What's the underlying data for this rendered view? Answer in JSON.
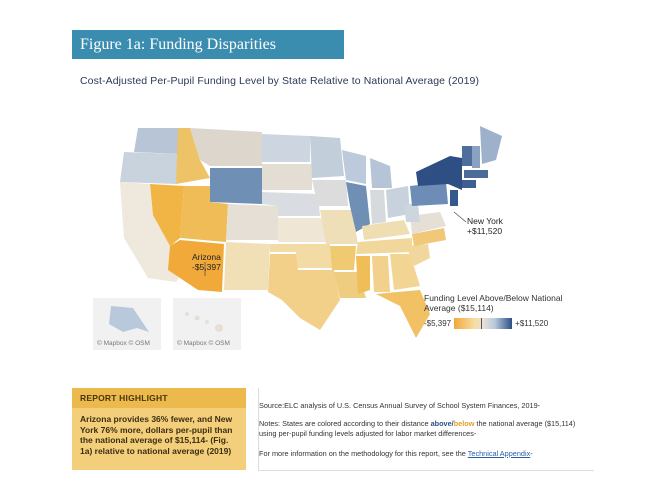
{
  "figure_title": "Figure 1a: Funding Disparities",
  "subtitle": "Cost-Adjusted Per-Pupil Funding Level by State Relative to National Average (2019)",
  "map": {
    "insets": [
      {
        "name": "Alaska",
        "credit": "© Mapbox © OSM"
      },
      {
        "name": "Hawaii",
        "credit": "© Mapbox © OSM"
      }
    ],
    "callouts": {
      "arizona": {
        "name": "Arizona",
        "value": "-$5,397"
      },
      "new_york": {
        "name": "New York",
        "value": "+$11,520"
      }
    },
    "legend": {
      "title": "Funding Level Above/Below National Average ($15,114)",
      "min_label": "-$5,397",
      "max_label": "+$11,520"
    },
    "colors": {
      "strongest_below": "#f1a93a",
      "below": "#f7dca0",
      "neutral": "#e8e2d7",
      "above": "#b9c9dc",
      "strongest_above": "#2e4f84"
    }
  },
  "highlight": {
    "heading": "REPORT HIGHLIGHT",
    "text": "Arizona provides 36% fewer, and New York 76% more, dollars per-pupil than the national average of $15,114- (Fig. 1a) relative to national average (2019)"
  },
  "notes": {
    "source": "Source:ELC analysis of U.S. Census Annual Survey of School System Finances, 2019-",
    "note_prefix": "Notes: States are colored according to their distance ",
    "note_above": "above",
    "note_slash": "/",
    "note_below": "below",
    "note_suffix": " the national average ($15,114) using per-pupil funding levels adjusted for labor market differences-",
    "method_prefix": "For more information on the methodology for this report, see the ",
    "method_link": "Technical Appendix",
    "method_suffix": "-"
  }
}
